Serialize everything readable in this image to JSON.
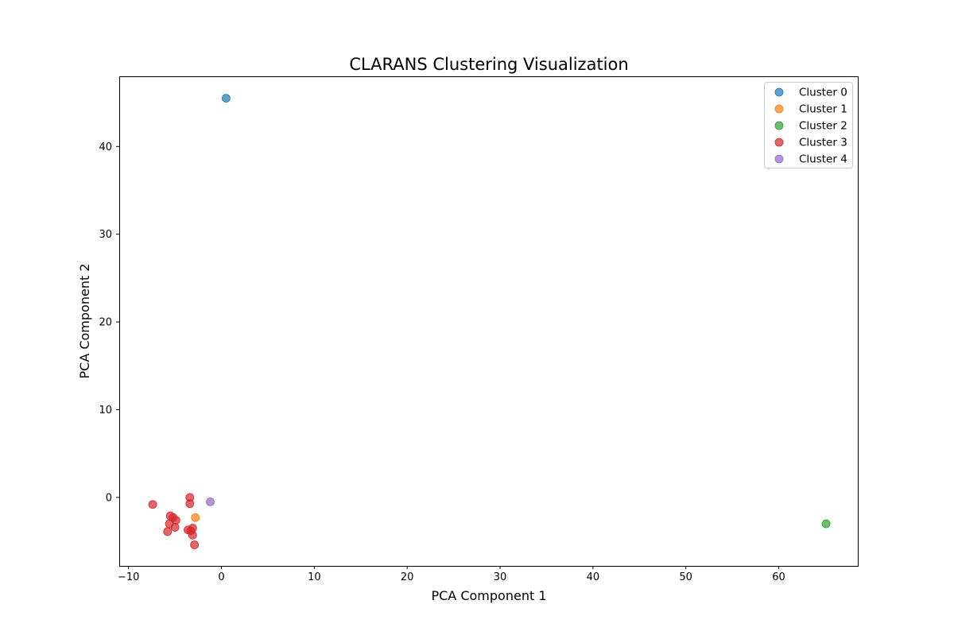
{
  "chart_data": {
    "type": "scatter",
    "title": "CLARANS Clustering Visualization",
    "xlabel": "PCA Component 1",
    "ylabel": "PCA Component 2",
    "xlim": [
      -11,
      68.6
    ],
    "ylim": [
      -7.8,
      48
    ],
    "xticks": [
      -10,
      0,
      10,
      20,
      30,
      40,
      50,
      60
    ],
    "yticks": [
      0,
      10,
      20,
      30,
      40
    ],
    "xtick_labels": [
      "−10",
      "0",
      "10",
      "20",
      "30",
      "40",
      "50",
      "60"
    ],
    "ytick_labels": [
      "0",
      "10",
      "20",
      "30",
      "40"
    ],
    "grid": false,
    "legend_position": "top-right",
    "series": [
      {
        "name": "Cluster 0",
        "color": "#1f77b4",
        "points": [
          [
            0.5,
            45.5
          ]
        ]
      },
      {
        "name": "Cluster 1",
        "color": "#ff7f0e",
        "points": [
          [
            -2.8,
            -2.3
          ]
        ]
      },
      {
        "name": "Cluster 2",
        "color": "#2ca02c",
        "points": [
          [
            65.1,
            -3.0
          ]
        ]
      },
      {
        "name": "Cluster 3",
        "color": "#d62728",
        "points": [
          [
            -7.4,
            -0.8
          ],
          [
            -3.4,
            0.0
          ],
          [
            -3.4,
            -0.7
          ],
          [
            -5.5,
            -2.1
          ],
          [
            -5.2,
            -2.3
          ],
          [
            -4.9,
            -2.6
          ],
          [
            -5.6,
            -3.0
          ],
          [
            -5.0,
            -3.4
          ],
          [
            -3.6,
            -3.7
          ],
          [
            -3.3,
            -3.8
          ],
          [
            -3.1,
            -3.5
          ],
          [
            -5.8,
            -3.9
          ],
          [
            -3.1,
            -4.3
          ],
          [
            -2.9,
            -5.4
          ]
        ]
      },
      {
        "name": "Cluster 4",
        "color": "#9467bd",
        "points": [
          [
            -1.2,
            -0.5
          ]
        ]
      }
    ]
  }
}
